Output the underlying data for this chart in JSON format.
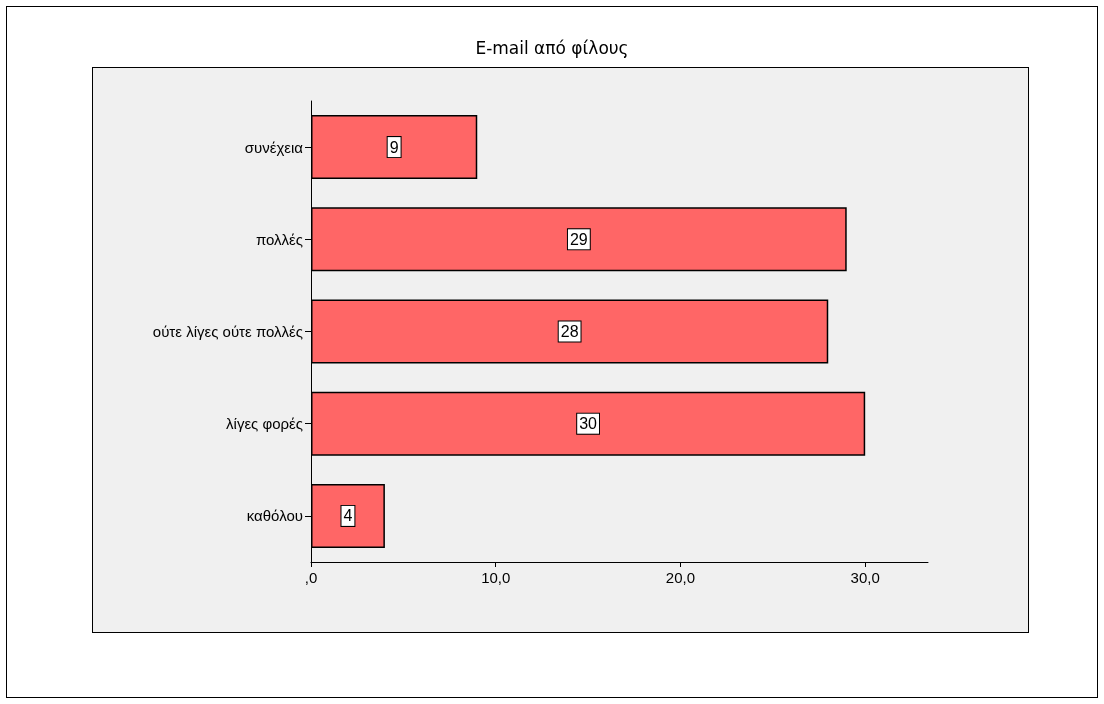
{
  "chart_data": {
    "type": "bar",
    "orientation": "horizontal",
    "title": "E-mail από φίλους",
    "categories": [
      "συνέχεια",
      "πολλές",
      "ούτε λίγες ούτε πολλές",
      "λίγες φορές",
      "καθόλου"
    ],
    "values": [
      9,
      29,
      28,
      30,
      4
    ],
    "color": "#ff6666",
    "xlim": [
      0,
      33.4
    ],
    "xticks": [
      {
        "value": 0,
        "label": ",0"
      },
      {
        "value": 10,
        "label": "10,0"
      },
      {
        "value": 20,
        "label": "20,0"
      },
      {
        "value": 30,
        "label": "30,0"
      }
    ],
    "data_labels": true,
    "grid": false
  }
}
